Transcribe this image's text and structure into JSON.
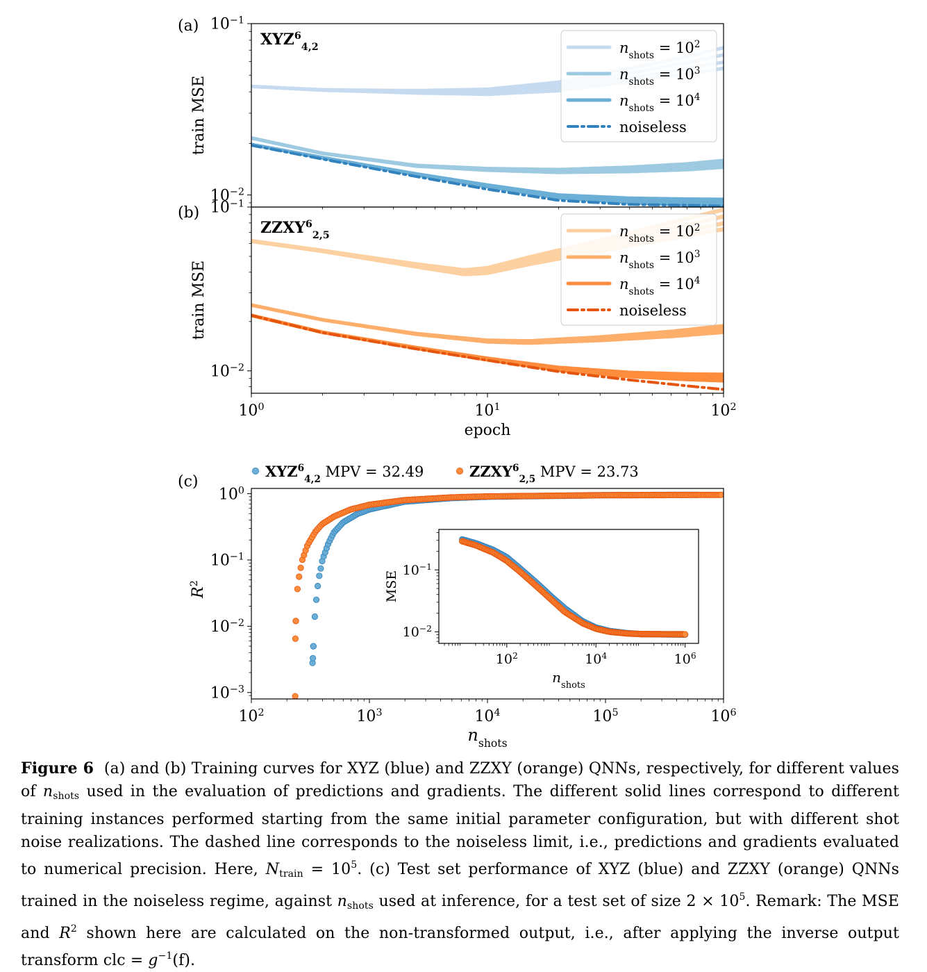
{
  "chart_data": [
    {
      "panel_label": "(a)",
      "type": "line",
      "title_main": "XYZ",
      "title_sup": "6",
      "title_sub": "4,2",
      "ylabel": "train MSE",
      "xlabel": "",
      "xscale": "log",
      "yscale": "log",
      "xlim": [
        1,
        100
      ],
      "ylim": [
        0.0085,
        0.1
      ],
      "x_ticks": [],
      "y_ticks": [
        {
          "base": "10",
          "exp": "−1",
          "value": 0.1
        },
        {
          "base": "10",
          "exp": "−2",
          "value": 0.01
        }
      ],
      "legend_position": "upper right",
      "legend": [
        {
          "main": "n",
          "sub": "shots",
          "rel": "= 10",
          "sup": "2",
          "color": "#c6dbef",
          "style": "solid"
        },
        {
          "main": "n",
          "sub": "shots",
          "rel": "= 10",
          "sup": "3",
          "color": "#9ecae1",
          "style": "solid"
        },
        {
          "main": "n",
          "sub": "shots",
          "rel": "= 10",
          "sup": "4",
          "color": "#6baed6",
          "style": "solid"
        },
        {
          "main": "noiseless",
          "sub": "",
          "rel": "",
          "sup": "",
          "color": "#3182bd",
          "style": "dashdot"
        }
      ],
      "series": [
        {
          "x": [
            1,
            2,
            5,
            10,
            20,
            40,
            70,
            100
          ],
          "y": [
            0.043,
            0.041,
            0.04,
            0.04,
            0.043,
            0.05,
            0.057,
            0.063
          ],
          "color": "#c6dbef",
          "width": 5,
          "dash": ""
        },
        {
          "x": [
            1,
            2,
            5,
            10,
            20,
            40,
            70,
            100
          ],
          "y": [
            0.0215,
            0.0175,
            0.0148,
            0.0141,
            0.0138,
            0.0141,
            0.0146,
            0.0152
          ],
          "color": "#9ecae1",
          "width": 5,
          "dash": ""
        },
        {
          "x": [
            1,
            2,
            5,
            10,
            20,
            40,
            70,
            100
          ],
          "y": [
            0.0197,
            0.0165,
            0.0132,
            0.0113,
            0.0098,
            0.0093,
            0.0091,
            0.009
          ],
          "color": "#6baed6",
          "width": 5,
          "dash": ""
        },
        {
          "x": [
            1,
            2,
            5,
            10,
            20,
            40,
            70,
            100
          ],
          "y": [
            0.0195,
            0.0162,
            0.0128,
            0.0108,
            0.0093,
            0.0088,
            0.0087,
            0.0086
          ],
          "color": "#3182bd",
          "width": 4,
          "dash": "14 6 3 6"
        }
      ]
    },
    {
      "panel_label": "(b)",
      "type": "line",
      "title_main": "ZZXY",
      "title_sup": "6",
      "title_sub": "2,5",
      "ylabel": "train MSE",
      "xlabel": "epoch",
      "xscale": "log",
      "yscale": "log",
      "xlim": [
        1,
        100
      ],
      "ylim": [
        0.0073,
        0.1
      ],
      "x_ticks": [
        {
          "base": "10",
          "exp": "0",
          "value": 1
        },
        {
          "base": "10",
          "exp": "1",
          "value": 10
        },
        {
          "base": "10",
          "exp": "2",
          "value": 100
        }
      ],
      "y_ticks": [
        {
          "base": "10",
          "exp": "−1",
          "value": 0.1
        },
        {
          "base": "10",
          "exp": "−2",
          "value": 0.01
        }
      ],
      "legend_position": "upper right",
      "legend": [
        {
          "main": "n",
          "sub": "shots",
          "rel": "= 10",
          "sup": "2",
          "color": "#fdd0a2",
          "style": "solid"
        },
        {
          "main": "n",
          "sub": "shots",
          "rel": "= 10",
          "sup": "3",
          "color": "#fdae6b",
          "style": "solid"
        },
        {
          "main": "n",
          "sub": "shots",
          "rel": "= 10",
          "sup": "4",
          "color": "#fd8d3c",
          "style": "solid"
        },
        {
          "main": "noiseless",
          "sub": "",
          "rel": "",
          "sup": "",
          "color": "#e6550d",
          "style": "dashdot"
        }
      ],
      "series": [
        {
          "x": [
            1,
            2,
            5,
            8,
            10,
            15,
            30,
            60,
            100
          ],
          "y": [
            0.062,
            0.054,
            0.044,
            0.04,
            0.041,
            0.047,
            0.058,
            0.072,
            0.084
          ],
          "color": "#fdd0a2",
          "width": 6,
          "dash": ""
        },
        {
          "x": [
            1,
            2,
            5,
            10,
            15,
            30,
            60,
            100
          ],
          "y": [
            0.0252,
            0.0205,
            0.0168,
            0.0152,
            0.015,
            0.0157,
            0.0168,
            0.018
          ],
          "color": "#fdae6b",
          "width": 5,
          "dash": ""
        },
        {
          "x": [
            1,
            2,
            5,
            10,
            20,
            40,
            70,
            100
          ],
          "y": [
            0.0218,
            0.0172,
            0.0138,
            0.0118,
            0.0103,
            0.0095,
            0.0092,
            0.0091
          ],
          "color": "#fd8d3c",
          "width": 5,
          "dash": ""
        },
        {
          "x": [
            1,
            2,
            5,
            10,
            20,
            40,
            70,
            100
          ],
          "y": [
            0.0218,
            0.0171,
            0.0136,
            0.0116,
            0.0099,
            0.0088,
            0.0081,
            0.0077
          ],
          "color": "#e6550d",
          "width": 4,
          "dash": "14 6 3 6"
        }
      ]
    },
    {
      "panel_label": "(c)",
      "type": "scatter",
      "ylabel_main": "R",
      "ylabel_sup": "2",
      "xlabel_main": "n",
      "xlabel_sub": "shots",
      "xscale": "log",
      "yscale": "log",
      "xlim": [
        100,
        1000000
      ],
      "ylim": [
        0.0008,
        1.2
      ],
      "x_ticks": [
        {
          "base": "10",
          "exp": "2",
          "value": 100
        },
        {
          "base": "10",
          "exp": "3",
          "value": 1000
        },
        {
          "base": "10",
          "exp": "4",
          "value": 10000
        },
        {
          "base": "10",
          "exp": "5",
          "value": 100000
        },
        {
          "base": "10",
          "exp": "6",
          "value": 1000000
        }
      ],
      "y_ticks": [
        {
          "base": "10",
          "exp": "0",
          "value": 1
        },
        {
          "base": "10",
          "exp": "−1",
          "value": 0.1
        },
        {
          "base": "10",
          "exp": "−2",
          "value": 0.01
        },
        {
          "base": "10",
          "exp": "−3",
          "value": 0.001
        }
      ],
      "legend_position": "above plot",
      "legend": [
        {
          "main": "XYZ",
          "sup": "6",
          "sub": "4,2",
          "rest": "MPV = 32.49",
          "color": "#3182bd",
          "fill": "#6baed6"
        },
        {
          "main": "ZZXY",
          "sup": "6",
          "sub": "2,5",
          "rest": "MPV = 23.73",
          "color": "#e6550d",
          "fill": "#fd8d3c"
        }
      ],
      "series": [
        {
          "x": [
            330,
            332,
            335,
            340,
            350,
            370,
            400,
            450,
            500,
            600,
            800,
            1000,
            2000,
            5000,
            10000,
            100000,
            600000
          ],
          "y": [
            0.0028,
            0.0033,
            0.005,
            0.01,
            0.02,
            0.05,
            0.1,
            0.18,
            0.26,
            0.37,
            0.5,
            0.58,
            0.76,
            0.86,
            0.9,
            0.95,
            0.96
          ],
          "color": "#3182bd",
          "fill": "#6baed6"
        },
        {
          "x": [
            235,
            236,
            238,
            240,
            245,
            255,
            270,
            300,
            350,
            400,
            500,
            700,
            1000,
            2000,
            5000,
            10000,
            100000,
            950000
          ],
          "y": [
            0.00088,
            0.0065,
            0.012,
            0.02,
            0.035,
            0.06,
            0.1,
            0.17,
            0.27,
            0.35,
            0.45,
            0.58,
            0.68,
            0.8,
            0.88,
            0.91,
            0.95,
            0.96
          ],
          "color": "#e6550d",
          "fill": "#fd8d3c"
        }
      ],
      "inset": {
        "ylabel": "MSE",
        "xlabel_main": "n",
        "xlabel_sub": "shots",
        "xscale": "log",
        "yscale": "log",
        "xlim": [
          3,
          2000000
        ],
        "ylim": [
          0.0065,
          0.45
        ],
        "x_ticks": [
          {
            "base": "10",
            "exp": "2",
            "value": 100
          },
          {
            "base": "10",
            "exp": "4",
            "value": 10000
          },
          {
            "base": "10",
            "exp": "6",
            "value": 1000000
          }
        ],
        "y_ticks": [
          {
            "base": "10",
            "exp": "−1",
            "value": 0.1
          },
          {
            "base": "10",
            "exp": "−2",
            "value": 0.01
          }
        ],
        "series": [
          {
            "x": [
              10,
              20,
              50,
              100,
              200,
              500,
              1000,
              2000,
              5000,
              10000,
              20000,
              50000,
              100000,
              1000000
            ],
            "y": [
              0.31,
              0.27,
              0.21,
              0.16,
              0.105,
              0.059,
              0.037,
              0.024,
              0.0148,
              0.0117,
              0.0103,
              0.0095,
              0.0092,
              0.009
            ],
            "color": "#3182bd",
            "fill": "#6baed6"
          },
          {
            "x": [
              10,
              20,
              50,
              100,
              200,
              500,
              1000,
              2000,
              5000,
              10000,
              20000,
              50000,
              100000,
              1000000
            ],
            "y": [
              0.29,
              0.25,
              0.19,
              0.14,
              0.093,
              0.052,
              0.033,
              0.021,
              0.0138,
              0.0112,
              0.01,
              0.0094,
              0.0092,
              0.0091
            ],
            "color": "#e6550d",
            "fill": "#fd8d3c"
          }
        ]
      }
    }
  ],
  "caption": {
    "label": "Figure 6",
    "p1": "(a) and (b) Training curves for XYZ (blue) and ZZXY (orange) QNNs, respectively, for different values of ",
    "n1": "n",
    "n1_sub": "shots",
    "p2": " used in the evaluation of predictions and gradients. The different solid lines correspond to different training instances performed starting from the same initial parameter configuration, but with different shot noise realizations. The dashed line corresponds to the noiseless limit, i.e., predictions and gradients evaluated to numerical precision. Here, ",
    "N": "N",
    "N_sub": "train",
    "eq1": " = 10",
    "eq1_sup": "5",
    "p3": ". (c) Test set performance of XYZ (blue) and ZZXY (orange) QNNs trained in the noiseless regime, against ",
    "n2": "n",
    "n2_sub": "shots",
    "p4": " used at inference, for a test set of size 2 × 10",
    "p4_sup": "5",
    "p5": ". Remark: The MSE and ",
    "R": "R",
    "R_sup": "2",
    "p6": " shown here are calculated on the non-transformed output, i.e., after applying the inverse output transform clc = ",
    "g": "g",
    "g_sup": "−1",
    "p7": "(f)."
  }
}
